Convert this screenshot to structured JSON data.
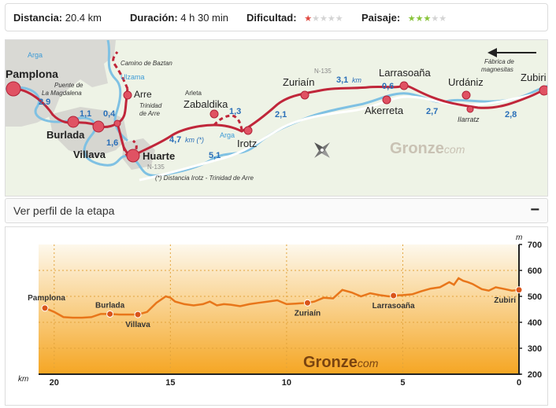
{
  "stats": {
    "distance_label": "Distancia:",
    "distance_value": "20.4 km",
    "duration_label": "Duración:",
    "duration_value": "4 h 30 min",
    "difficulty_label": "Dificultad:",
    "difficulty_stars": 1,
    "difficulty_color": "#e0473f",
    "landscape_label": "Paisaje:",
    "landscape_stars": 3,
    "landscape_color": "#88c43a",
    "stars_total": 5
  },
  "map": {
    "places": {
      "pamplona": "Pamplona",
      "burlada": "Burlada",
      "villava": "Villava",
      "arre": "Arre",
      "huarte": "Huarte",
      "zabaldika": "Zabaldika",
      "irotz": "Irotz",
      "zuriain": "Zuriaín",
      "larrasoana": "Larrasoaña",
      "akerreta": "Akerreta",
      "urdaniz": "Urdániz",
      "zubiri": "Zubiri",
      "ilarratz": "Ilarratz"
    },
    "notes": {
      "puente": "Puente de\nLa Magdalena",
      "camino_baztan": "Camino de Baztan",
      "trinidad": "Trinidad\nde Arre",
      "arleta": "Arleta",
      "fabrica": "Fábrica de\nmagnesitas",
      "footnote": "(*) Distancia Irotz - Trinidad de Arre"
    },
    "rivers": {
      "arga": "Arga",
      "ulzama": "Ulzama"
    },
    "roads": {
      "n135": "N-135"
    },
    "distances": [
      "2,9",
      "1,1",
      "0,4",
      "1,6",
      "4,7",
      "km (*)",
      "1,3",
      "5,1",
      "2,1",
      "3,1",
      "km",
      "0,6",
      "2,7",
      "2,8"
    ],
    "brand": "Gronze",
    "brand_suffix": "com"
  },
  "profile_header": {
    "label": "Ver perfil de la etapa",
    "toggle": "−"
  },
  "chart_data": {
    "type": "line",
    "title": "",
    "xlabel": "km",
    "ylabel": "m",
    "xlim": [
      20.4,
      0
    ],
    "ylim": [
      200,
      700
    ],
    "xticks": [
      20,
      15,
      10,
      5,
      0
    ],
    "yticks": [
      200,
      300,
      400,
      500,
      600,
      700
    ],
    "grid": true,
    "brand": "Gronze",
    "brand_suffix": "com",
    "series": [
      {
        "x": [
          20.4,
          20.0,
          19.6,
          19.2,
          18.8,
          18.4,
          18.0,
          17.6,
          17.2,
          16.8,
          16.4,
          16.0,
          15.6,
          15.2,
          15.0,
          14.8,
          14.4,
          14.0,
          13.6,
          13.3,
          13.0,
          12.7,
          12.4,
          12.0,
          11.6,
          11.2,
          10.8,
          10.4,
          10.0,
          9.6,
          9.1,
          8.8,
          8.4,
          8.0,
          7.6,
          7.2,
          6.8,
          6.4,
          6.0,
          5.6,
          5.4,
          5.0,
          4.6,
          4.2,
          3.8,
          3.4,
          3.0,
          2.8,
          2.6,
          2.4,
          2.2,
          2.0,
          1.6,
          1.3,
          1.0,
          0.6,
          0.3,
          0.0
        ],
        "y": [
          455,
          440,
          420,
          418,
          418,
          420,
          432,
          432,
          430,
          430,
          430,
          440,
          475,
          500,
          495,
          480,
          470,
          465,
          470,
          480,
          465,
          470,
          468,
          462,
          470,
          475,
          480,
          485,
          470,
          472,
          475,
          480,
          495,
          492,
          525,
          515,
          500,
          512,
          505,
          500,
          503,
          505,
          508,
          520,
          530,
          535,
          555,
          545,
          570,
          560,
          555,
          548,
          528,
          522,
          535,
          528,
          522,
          525
        ]
      }
    ],
    "labeled_points": [
      {
        "name": "Pamplona",
        "x": 20.4,
        "y": 455
      },
      {
        "name": "Burlada",
        "x": 17.6,
        "y": 432
      },
      {
        "name": "Villava",
        "x": 16.4,
        "y": 430
      },
      {
        "name": "Zuriaín",
        "x": 9.1,
        "y": 475
      },
      {
        "name": "Larrasoaña",
        "x": 5.4,
        "y": 503
      },
      {
        "name": "Zubiri",
        "x": 0.0,
        "y": 525
      }
    ],
    "line_color": "#e8761a"
  }
}
